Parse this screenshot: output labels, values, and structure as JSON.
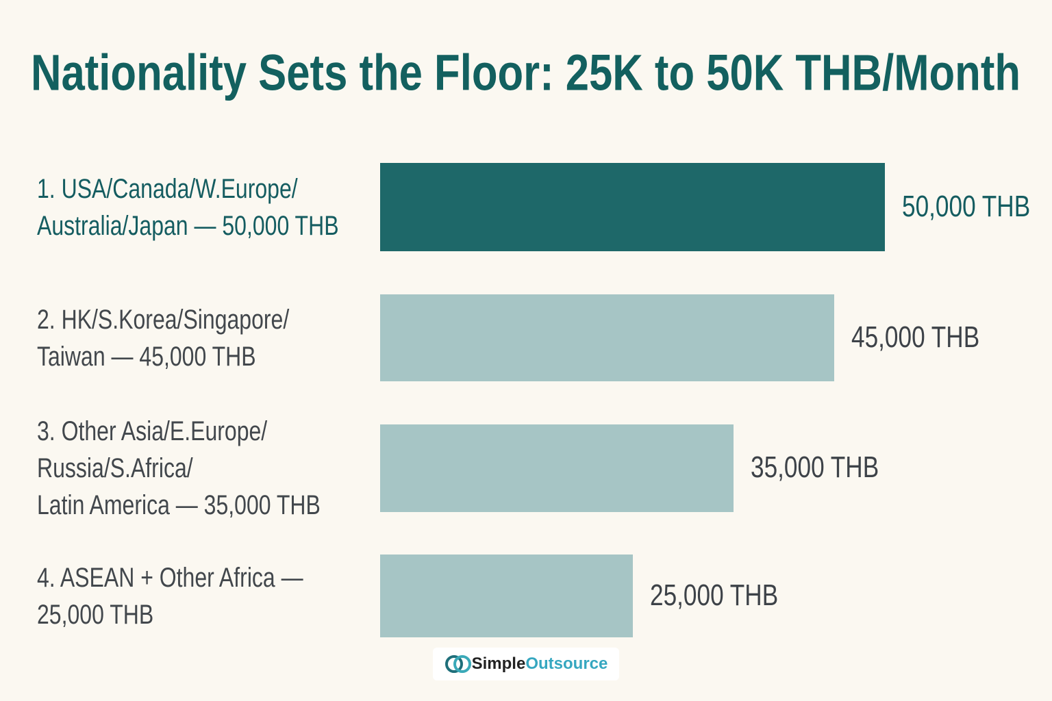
{
  "chart_data": {
    "type": "bar",
    "orientation": "horizontal",
    "title": "Nationality Sets the Floor: 25K to 50K THB/Month",
    "categories": [
      "1. USA/Canada/W.Europe/\nAustralia/Japan — 50,000 THB",
      "2. HK/S.Korea/Singapore/\nTaiwan — 45,000 THB",
      "3. Other Asia/E.Europe/\nRussia/S.Africa/\nLatin America — 35,000 THB",
      "4. ASEAN + Other Africa —\n25,000 THB"
    ],
    "values": [
      50000,
      45000,
      35000,
      25000
    ],
    "value_labels": [
      "50,000 THB",
      "45,000 THB",
      "35,000 THB",
      "25,000 THB"
    ],
    "colors": [
      "#1e6869",
      "#a6c5c5",
      "#a6c5c5",
      "#a6c5c5"
    ],
    "label_colors": [
      "#145c60",
      "#42474c",
      "#42474c",
      "#42474c"
    ],
    "xlim": [
      0,
      50000
    ]
  },
  "logo": {
    "text": [
      "Simple",
      "Outsource"
    ]
  }
}
